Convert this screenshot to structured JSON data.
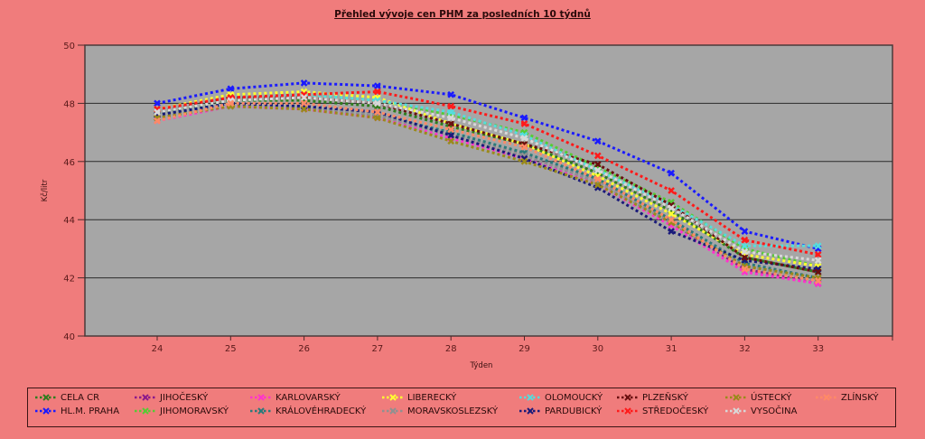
{
  "chart_data": {
    "type": "line",
    "title": "Přehled vývoje cen PHM za posledních 10 týdnů",
    "xlabel": "Týden",
    "ylabel": "Kč/litr",
    "x": [
      24,
      25,
      26,
      27,
      28,
      29,
      30,
      31,
      32,
      33
    ],
    "x_tick_labels": [
      "24",
      "25",
      "26",
      "27",
      "28",
      "29",
      "30",
      "31",
      "32",
      "33"
    ],
    "ylim": [
      40,
      50
    ],
    "y_ticks": [
      40,
      42,
      44,
      46,
      48,
      50
    ],
    "y_tick_labels": [
      "40",
      "42",
      "44",
      "46",
      "48",
      "50"
    ],
    "grid": "horizontal",
    "legend_position": "bottom",
    "plot_background": "#a6a6a6",
    "page_background": "#f07c7c",
    "series": [
      {
        "name": "CELA CR",
        "color": "#2e7d1e",
        "values": [
          47.6,
          48.1,
          48.1,
          47.9,
          47.2,
          46.6,
          45.6,
          44.3,
          42.7,
          42.2
        ]
      },
      {
        "name": "HL.M. PRAHA",
        "color": "#1a1aff",
        "values": [
          48.0,
          48.5,
          48.7,
          48.6,
          48.3,
          47.5,
          46.7,
          45.6,
          43.6,
          43.0
        ]
      },
      {
        "name": "JIHOČESKÝ",
        "color": "#8b1a8b",
        "values": [
          47.5,
          47.9,
          47.9,
          47.6,
          46.9,
          46.2,
          45.3,
          43.9,
          42.3,
          41.8
        ]
      },
      {
        "name": "JIHOMORAVSKÝ",
        "color": "#55cc33",
        "values": [
          47.7,
          48.2,
          48.3,
          48.1,
          47.6,
          47.0,
          45.8,
          44.6,
          43.0,
          42.4
        ]
      },
      {
        "name": "KARLOVARSKÝ",
        "color": "#ff33cc",
        "values": [
          47.4,
          47.9,
          47.8,
          47.5,
          46.8,
          46.1,
          45.2,
          43.8,
          42.2,
          41.8
        ]
      },
      {
        "name": "KRÁLOVÉHRADECKÝ",
        "color": "#2a7a7a",
        "values": [
          47.6,
          48.0,
          47.9,
          47.6,
          47.0,
          46.3,
          45.4,
          44.0,
          42.5,
          42.0
        ]
      },
      {
        "name": "LIBERECKÝ",
        "color": "#ffff33",
        "values": [
          47.8,
          48.3,
          48.4,
          48.2,
          47.3,
          46.6,
          45.5,
          44.2,
          42.8,
          42.4
        ]
      },
      {
        "name": "MORAVSKOSLEZSKÝ",
        "color": "#909090",
        "values": [
          47.5,
          47.9,
          47.9,
          47.6,
          46.9,
          46.2,
          45.3,
          43.9,
          42.4,
          41.9
        ]
      },
      {
        "name": "OLOMOUCKÝ",
        "color": "#55dddd",
        "values": [
          47.7,
          48.2,
          48.3,
          48.1,
          47.7,
          46.9,
          45.7,
          44.5,
          43.1,
          43.1
        ]
      },
      {
        "name": "PARDUBICKÝ",
        "color": "#1a1a7a",
        "values": [
          47.6,
          48.0,
          47.9,
          47.7,
          46.9,
          46.1,
          45.1,
          43.6,
          42.6,
          42.3
        ]
      },
      {
        "name": "PLZEŇSKÝ",
        "color": "#6a1010",
        "values": [
          47.7,
          48.2,
          48.2,
          48.0,
          47.3,
          46.6,
          45.9,
          44.5,
          42.7,
          42.2
        ]
      },
      {
        "name": "STŘEDOČESKÝ",
        "color": "#ff1a1a",
        "values": [
          47.8,
          48.2,
          48.3,
          48.4,
          47.9,
          47.3,
          46.2,
          45.0,
          43.3,
          42.8
        ]
      },
      {
        "name": "ÚSTECKÝ",
        "color": "#9a8a1a",
        "values": [
          47.5,
          47.9,
          47.8,
          47.5,
          46.7,
          46.0,
          45.2,
          43.9,
          42.4,
          42.0
        ]
      },
      {
        "name": "VYSOČINA",
        "color": "#d8d8d8",
        "values": [
          47.7,
          48.1,
          48.2,
          48.0,
          47.5,
          46.8,
          45.7,
          44.4,
          42.9,
          42.6
        ]
      },
      {
        "name": "ZLÍNSKÝ",
        "color": "#ff8a66",
        "values": [
          47.4,
          48.0,
          48.0,
          47.7,
          47.1,
          46.5,
          45.4,
          44.0,
          42.3,
          41.9
        ]
      }
    ]
  },
  "legend": {
    "rows": [
      [
        "CELA CR",
        "JIHOČESKÝ",
        "KARLOVARSKÝ",
        "LIBERECKÝ",
        "OLOMOUCKÝ",
        "PLZEŇSKÝ",
        "ÚSTECKÝ",
        "ZLÍNSKÝ"
      ],
      [
        "HL.M. PRAHA",
        "JIHOMORAVSKÝ",
        "KRÁLOVÉHRADECKÝ",
        "MORAVSKOSLEZSKÝ",
        "PARDUBICKÝ",
        "STŘEDOČESKÝ",
        "VYSOČINA"
      ]
    ]
  }
}
